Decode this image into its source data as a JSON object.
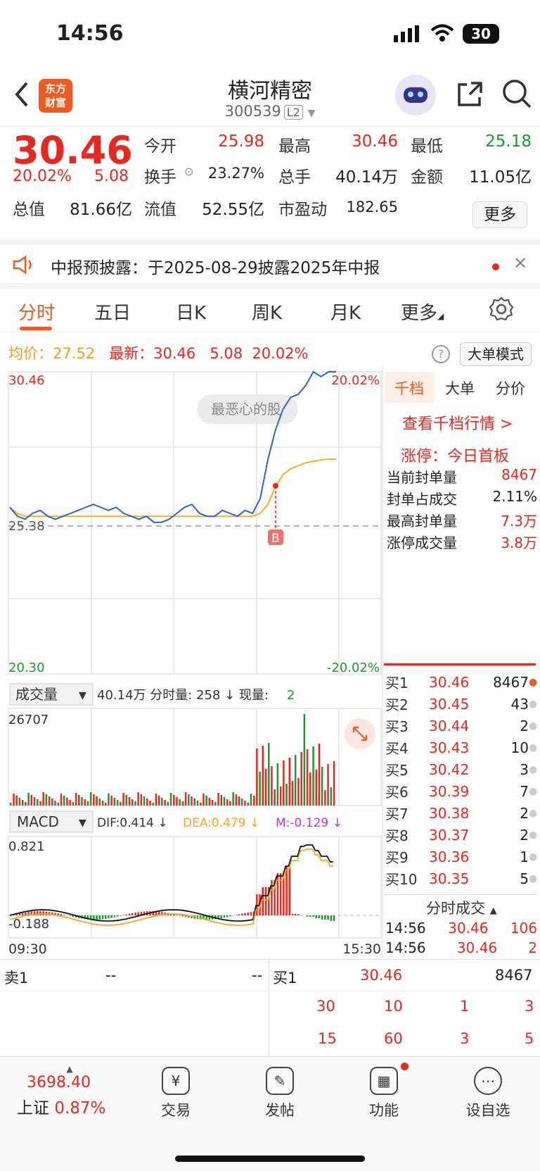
{
  "status": {
    "time": "14:56",
    "battery": "30"
  },
  "header": {
    "back_icon": "chevron-left-icon",
    "logo": "东方\n财富",
    "title": "横河精密",
    "code": "300539",
    "level": "L2"
  },
  "quote": {
    "price": "30.46",
    "pct": "20.02%",
    "change": "5.08",
    "rows": [
      [
        {
          "l": "今开",
          "v": "25.98",
          "c": "red"
        },
        {
          "l": "最高",
          "v": "30.46",
          "c": "red"
        },
        {
          "l": "最低",
          "v": "25.18",
          "c": "green"
        }
      ],
      [
        {
          "l": "换手",
          "v": "23.27%",
          "c": ""
        },
        {
          "l": "总手",
          "v": "40.14万",
          "c": ""
        },
        {
          "l": "金额",
          "v": "11.05亿",
          "c": ""
        }
      ],
      [
        {
          "l": "总值",
          "v": "81.66亿",
          "c": ""
        },
        {
          "l": "流值",
          "v": "52.55亿",
          "c": ""
        },
        {
          "l": "市盈动",
          "v": "182.65",
          "c": ""
        }
      ]
    ],
    "more": "更多"
  },
  "notice": {
    "text": "中报预披露：于2025-08-29披露2025年中报"
  },
  "tabs": [
    "分时",
    "五日",
    "日K",
    "周K",
    "月K",
    "更多"
  ],
  "info": {
    "avg_label": "均价：",
    "avg": "27.52",
    "latest_label": "最新：",
    "latest": "30.46",
    "chg": "5.08",
    "pct": "20.02%",
    "mode": "大单模式"
  },
  "chart": {
    "top": "30.46",
    "bottom": "20.30",
    "top_pct": "20.02%",
    "bottom_pct": "-20.02%",
    "base": "25.38",
    "bubble": "最恶心的股",
    "marker": "B",
    "vol_label": "成交量",
    "vol_info": "40.14万 分时量: 258 ↓ 现量: ",
    "vol_now": "2",
    "vol_max": "26707",
    "macd_label": "MACD",
    "dif": "DIF:0.414 ↓",
    "dea": "DEA:0.479 ↓",
    "m": "M:-0.129 ↓",
    "macd_top": "0.821",
    "macd_bottom": "-0.188",
    "time_start": "09:30",
    "time_end": "15:30"
  },
  "side": {
    "tabs": [
      "千档",
      "大单",
      "分价"
    ],
    "link": "查看千档行情 >",
    "limit_label": "涨停：今日首板",
    "stats": [
      {
        "l": "当前封单量",
        "v": "8467"
      },
      {
        "l": "封单占成交",
        "v": "2.11%"
      },
      {
        "l": "最高封单量",
        "v": "7.3万"
      },
      {
        "l": "涨停成交量",
        "v": "3.8万"
      }
    ],
    "buys": [
      {
        "l": "买1",
        "p": "30.46",
        "v": "8467"
      },
      {
        "l": "买2",
        "p": "30.45",
        "v": "43"
      },
      {
        "l": "买3",
        "p": "30.44",
        "v": "2"
      },
      {
        "l": "买4",
        "p": "30.43",
        "v": "10"
      },
      {
        "l": "买5",
        "p": "30.42",
        "v": "3"
      },
      {
        "l": "买6",
        "p": "30.39",
        "v": "7"
      },
      {
        "l": "买7",
        "p": "30.38",
        "v": "2"
      },
      {
        "l": "买8",
        "p": "30.37",
        "v": "2"
      },
      {
        "l": "买9",
        "p": "30.36",
        "v": "1"
      },
      {
        "l": "买10",
        "p": "30.35",
        "v": "5"
      }
    ],
    "ticks_title": "分时成交",
    "ticks": [
      {
        "t": "14:56",
        "p": "30.46",
        "v": "106"
      },
      {
        "t": "14:56",
        "p": "30.46",
        "v": "2"
      }
    ]
  },
  "orderbook": {
    "sell_label": "卖1",
    "sell_p": "--",
    "sell_v": "--",
    "buy_label": "买1",
    "buy_p": "30.46",
    "buy_v": "8467",
    "row1": [
      "30",
      "10",
      "1",
      "3"
    ],
    "row2": [
      "15",
      "60",
      "3",
      "5"
    ]
  },
  "bottom": {
    "index_value": "3698.40",
    "index_name": "上证",
    "index_pct": "0.87%",
    "nav": [
      {
        "label": "交易",
        "icon": "¥"
      },
      {
        "label": "发帖",
        "icon": "✎"
      },
      {
        "label": "功能",
        "icon": "▦"
      },
      {
        "label": "设自选",
        "icon": "⋯"
      }
    ]
  },
  "price_series": [
    25.9,
    25.6,
    25.5,
    25.7,
    25.8,
    25.6,
    25.5,
    25.6,
    25.7,
    25.8,
    25.9,
    26.0,
    25.9,
    25.8,
    25.9,
    25.7,
    25.6,
    25.5,
    25.6,
    25.4,
    25.4,
    25.5,
    25.7,
    25.9,
    26.0,
    25.7,
    25.6,
    25.6,
    25.8,
    25.7,
    25.6,
    25.8,
    25.7,
    26.2,
    27.5,
    28.5,
    29.2,
    29.6,
    29.7,
    30.0,
    30.46,
    30.3,
    30.46,
    30.46
  ],
  "avg_series": [
    25.9,
    25.7,
    25.6,
    25.6,
    25.6,
    25.6,
    25.6,
    25.6,
    25.6,
    25.6,
    25.6,
    25.6,
    25.6,
    25.6,
    25.6,
    25.6,
    25.6,
    25.6,
    25.6,
    25.6,
    25.6,
    25.6,
    25.6,
    25.6,
    25.6,
    25.6,
    25.6,
    25.6,
    25.6,
    25.6,
    25.6,
    25.6,
    25.6,
    25.7,
    26.0,
    26.6,
    27.0,
    27.2,
    27.3,
    27.4,
    27.45,
    27.5,
    27.52,
    27.52
  ]
}
